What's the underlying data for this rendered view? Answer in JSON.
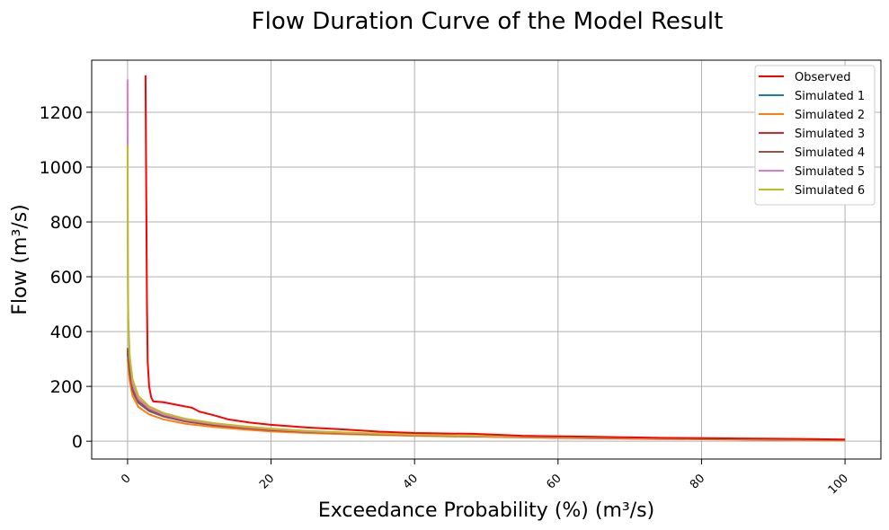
{
  "chart_data": {
    "type": "line",
    "title": "Flow Duration Curve of the Model Result",
    "xlabel": "Exceedance Probability (%) (m³/s)",
    "ylabel": "Flow (m³/s)",
    "xlim": [
      -5,
      105
    ],
    "ylim": [
      -65,
      1390
    ],
    "xticks": [
      0,
      20,
      40,
      60,
      80,
      100
    ],
    "yticks": [
      0,
      200,
      400,
      600,
      800,
      1000,
      1200
    ],
    "xtick_labels": [
      "0",
      "20",
      "40",
      "60",
      "80",
      "100"
    ],
    "ytick_labels": [
      "0",
      "200",
      "400",
      "600",
      "800",
      "1000",
      "1200"
    ],
    "grid": true,
    "legend_position": "top-right",
    "series": [
      {
        "name": "Observed",
        "color": "#ff0000",
        "points": [
          [
            2.5,
            1335
          ],
          [
            2.6,
            900
          ],
          [
            2.7,
            500
          ],
          [
            2.8,
            290
          ],
          [
            3.0,
            200
          ],
          [
            3.3,
            160
          ],
          [
            3.6,
            145
          ],
          [
            5,
            142
          ],
          [
            7,
            132
          ],
          [
            9,
            122
          ],
          [
            10,
            108
          ],
          [
            12,
            95
          ],
          [
            14,
            80
          ],
          [
            17,
            68
          ],
          [
            20,
            60
          ],
          [
            25,
            50
          ],
          [
            30,
            43
          ],
          [
            35,
            35
          ],
          [
            40,
            30
          ],
          [
            45,
            28
          ],
          [
            48,
            27
          ],
          [
            52,
            23
          ],
          [
            55,
            20
          ],
          [
            60,
            18
          ],
          [
            65,
            16
          ],
          [
            70,
            14
          ],
          [
            75,
            12
          ],
          [
            80,
            11
          ],
          [
            85,
            10
          ],
          [
            90,
            9
          ],
          [
            95,
            8
          ],
          [
            100,
            6
          ]
        ]
      },
      {
        "name": "Simulated 1",
        "color": "#1f77b4",
        "points": [
          [
            0,
            320
          ],
          [
            0.3,
            240
          ],
          [
            0.7,
            180
          ],
          [
            1.5,
            140
          ],
          [
            3,
            110
          ],
          [
            5,
            90
          ],
          [
            8,
            72
          ],
          [
            12,
            58
          ],
          [
            16,
            48
          ],
          [
            20,
            40
          ],
          [
            25,
            33
          ],
          [
            30,
            28
          ],
          [
            40,
            21
          ],
          [
            50,
            17
          ],
          [
            60,
            13
          ],
          [
            70,
            10
          ],
          [
            80,
            8
          ],
          [
            90,
            6
          ],
          [
            100,
            4
          ]
        ]
      },
      {
        "name": "Simulated 2",
        "color": "#ff7f0e",
        "points": [
          [
            0,
            300
          ],
          [
            0.3,
            220
          ],
          [
            0.7,
            165
          ],
          [
            1.5,
            125
          ],
          [
            3,
            98
          ],
          [
            5,
            80
          ],
          [
            8,
            64
          ],
          [
            12,
            52
          ],
          [
            16,
            43
          ],
          [
            20,
            36
          ],
          [
            25,
            30
          ],
          [
            30,
            26
          ],
          [
            40,
            20
          ],
          [
            50,
            16
          ],
          [
            60,
            12
          ],
          [
            70,
            9
          ],
          [
            80,
            7
          ],
          [
            90,
            5
          ],
          [
            100,
            3
          ]
        ]
      },
      {
        "name": "Simulated 3",
        "color": "#d62728",
        "points": [
          [
            0,
            330
          ],
          [
            0.3,
            250
          ],
          [
            0.7,
            185
          ],
          [
            1.5,
            143
          ],
          [
            3,
            113
          ],
          [
            5,
            92
          ],
          [
            8,
            74
          ],
          [
            12,
            59
          ],
          [
            16,
            49
          ],
          [
            20,
            41
          ],
          [
            25,
            34
          ],
          [
            30,
            29
          ],
          [
            40,
            22
          ],
          [
            50,
            17
          ],
          [
            60,
            13
          ],
          [
            70,
            10
          ],
          [
            80,
            8
          ],
          [
            90,
            6
          ],
          [
            100,
            4
          ]
        ]
      },
      {
        "name": "Simulated 4",
        "color": "#8c564b",
        "points": [
          [
            0,
            340
          ],
          [
            0.3,
            255
          ],
          [
            0.7,
            190
          ],
          [
            1.5,
            146
          ],
          [
            3,
            115
          ],
          [
            5,
            94
          ],
          [
            8,
            76
          ],
          [
            12,
            61
          ],
          [
            16,
            50
          ],
          [
            20,
            42
          ],
          [
            25,
            35
          ],
          [
            30,
            30
          ],
          [
            40,
            22
          ],
          [
            50,
            18
          ],
          [
            60,
            14
          ],
          [
            70,
            11
          ],
          [
            80,
            8
          ],
          [
            90,
            6
          ],
          [
            100,
            4
          ]
        ]
      },
      {
        "name": "Simulated 5",
        "color": "#e377c2",
        "points": [
          [
            0,
            1320
          ],
          [
            0.02,
            900
          ],
          [
            0.05,
            600
          ],
          [
            0.1,
            450
          ],
          [
            0.3,
            300
          ],
          [
            0.7,
            210
          ],
          [
            1.5,
            155
          ],
          [
            3,
            120
          ],
          [
            5,
            98
          ],
          [
            8,
            78
          ],
          [
            12,
            63
          ],
          [
            16,
            52
          ],
          [
            20,
            44
          ],
          [
            25,
            36
          ],
          [
            30,
            31
          ],
          [
            40,
            23
          ],
          [
            50,
            18
          ],
          [
            60,
            14
          ],
          [
            70,
            11
          ],
          [
            80,
            9
          ],
          [
            90,
            7
          ],
          [
            100,
            5
          ]
        ]
      },
      {
        "name": "Simulated 6",
        "color": "#bcbd22",
        "points": [
          [
            0,
            1080
          ],
          [
            0.02,
            800
          ],
          [
            0.05,
            560
          ],
          [
            0.1,
            420
          ],
          [
            0.3,
            310
          ],
          [
            0.7,
            225
          ],
          [
            1.5,
            165
          ],
          [
            3,
            127
          ],
          [
            5,
            103
          ],
          [
            8,
            82
          ],
          [
            12,
            66
          ],
          [
            16,
            55
          ],
          [
            20,
            46
          ],
          [
            25,
            38
          ],
          [
            30,
            32
          ],
          [
            40,
            24
          ],
          [
            50,
            19
          ],
          [
            60,
            15
          ],
          [
            70,
            12
          ],
          [
            80,
            9
          ],
          [
            90,
            7
          ],
          [
            100,
            5
          ]
        ]
      }
    ]
  }
}
